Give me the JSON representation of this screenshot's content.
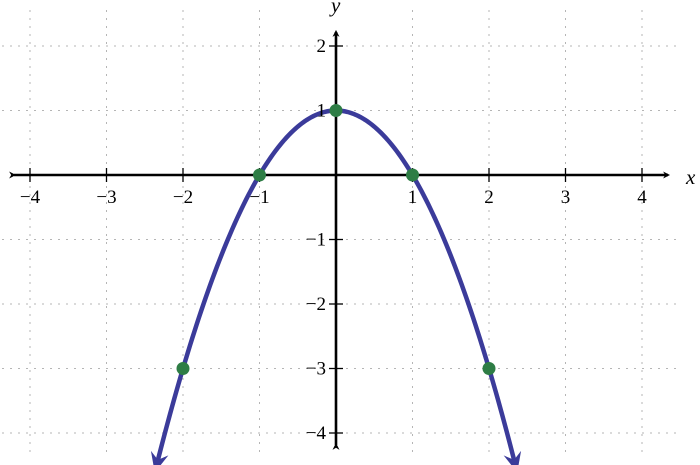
{
  "chart_data": {
    "type": "line",
    "xlabel": "x",
    "ylabel": "y",
    "xlim": [
      -4.4,
      4.55
    ],
    "ylim": [
      -4.2,
      2.4
    ],
    "grid": true,
    "x_ticks": [
      -4,
      -3,
      -2,
      -1,
      1,
      2,
      3,
      4
    ],
    "x_tick_labels": [
      "−4",
      "−3",
      "−2",
      "−1",
      "1",
      "2",
      "3",
      "4"
    ],
    "y_ticks": [
      2,
      1,
      -1,
      -2,
      -3,
      -4
    ],
    "y_tick_labels": [
      "2",
      "1",
      "−1",
      "−2",
      "−3",
      "−4"
    ],
    "series": [
      {
        "function": "y = -x^2 + 1",
        "x_range": [
          -2.35,
          2.35
        ],
        "color": "#3b3b9a",
        "arrows": "both-ends-down"
      }
    ],
    "points": [
      {
        "x": -2,
        "y": -3
      },
      {
        "x": -1,
        "y": 0
      },
      {
        "x": 0,
        "y": 1
      },
      {
        "x": 1,
        "y": 0
      },
      {
        "x": 2,
        "y": -3
      }
    ],
    "point_color": "#2e7d45",
    "axis_color": "#000000",
    "grid_color": "#b5b5b5"
  }
}
